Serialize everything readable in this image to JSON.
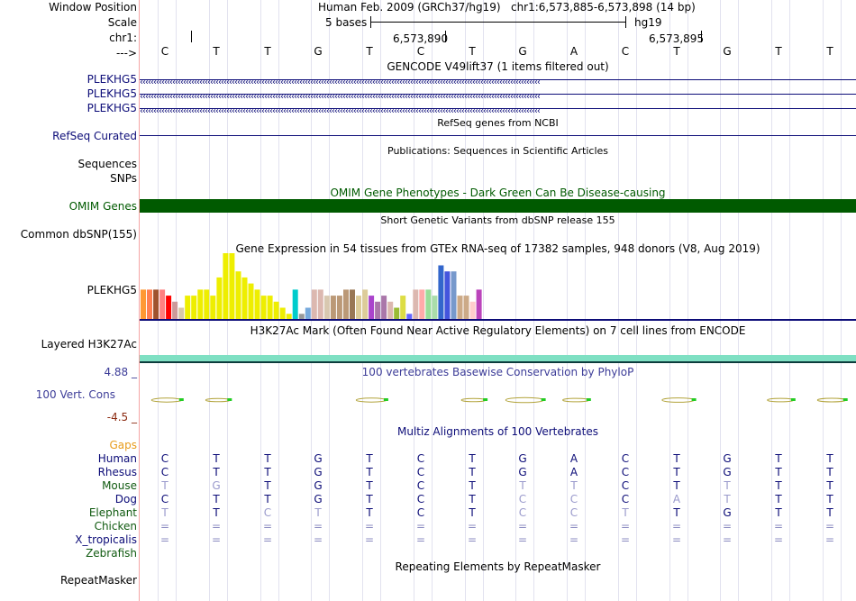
{
  "header": {
    "window_position_label": "Window Position",
    "scale_label": "Scale",
    "chr_label": "chr1:",
    "strand_label": "--->",
    "assembly": "Human Feb. 2009 (GRCh37/hg19)",
    "position": "chr1:6,573,885-6,573,898 (14 bp)",
    "scale_text": "5 bases",
    "scale_db": "hg19",
    "coord_1": "6,573,890",
    "coord_2": "6,573,895",
    "sequence": [
      "C",
      "T",
      "T",
      "G",
      "T",
      "C",
      "T",
      "G",
      "A",
      "C",
      "T",
      "G",
      "T",
      "T"
    ]
  },
  "tracks": {
    "gencode": {
      "title": "GENCODE V49lift37 (1 items filtered out)",
      "genes": [
        "PLEKHG5",
        "PLEKHG5",
        "PLEKHG5"
      ]
    },
    "refseq": {
      "title": "RefSeq genes from NCBI",
      "label": "RefSeq Curated"
    },
    "publications": {
      "title": "Publications: Sequences in Scientific Articles",
      "label": "Sequences"
    },
    "snps_label": "SNPs",
    "omim": {
      "title": "OMIM Gene Phenotypes - Dark Green Can Be Disease-causing",
      "label": "OMIM Genes",
      "color": "#005a00"
    },
    "dbsnp": {
      "title": "Short Genetic Variants from dbSNP release 155",
      "label": "Common dbSNP(155)"
    },
    "gtex": {
      "title": "Gene Expression in 54 tissues from GTEx RNA-seq of 17382 samples, 948 donors (V8, Aug 2019)",
      "label": "PLEKHG5"
    },
    "h3k27ac": {
      "title": "H3K27Ac Mark (Often Found Near Active Regulatory Elements) on 7 cell lines from ENCODE",
      "label": "Layered H3K27Ac",
      "color": "#7fe0c3"
    },
    "phylop": {
      "title": "100 vertebrates Basewise Conservation by PhyloP",
      "label": "100 Vert. Cons",
      "max": "4.88 _",
      "min": "-4.5 _"
    },
    "multiz": {
      "title": "Multiz Alignments of 100 Vertebrates",
      "gaps_label": "Gaps",
      "species": [
        {
          "name": "Human",
          "seq": [
            "C",
            "T",
            "T",
            "G",
            "T",
            "C",
            "T",
            "G",
            "A",
            "C",
            "T",
            "G",
            "T",
            "T"
          ]
        },
        {
          "name": "Rhesus",
          "seq": [
            "C",
            "T",
            "T",
            "G",
            "T",
            "C",
            "T",
            "G",
            "A",
            "C",
            "T",
            "G",
            "T",
            "T"
          ]
        },
        {
          "name": "Mouse",
          "seq": [
            "T",
            "G",
            "T",
            "G",
            "T",
            "C",
            "T",
            "T",
            "T",
            "C",
            "T",
            "T",
            "T",
            "T"
          ]
        },
        {
          "name": "Dog",
          "seq": [
            "C",
            "T",
            "T",
            "G",
            "T",
            "C",
            "T",
            "C",
            "C",
            "C",
            "A",
            "T",
            "T",
            "T"
          ]
        },
        {
          "name": "Elephant",
          "seq": [
            "T",
            "T",
            "C",
            "T",
            "T",
            "C",
            "T",
            "C",
            "C",
            "T",
            "T",
            "G",
            "T",
            "T"
          ]
        },
        {
          "name": "Chicken",
          "seq": [
            "=",
            "=",
            "=",
            "=",
            "=",
            "=",
            "=",
            "=",
            "=",
            "=",
            "=",
            "=",
            "=",
            "="
          ]
        },
        {
          "name": "X_tropicalis",
          "seq": [
            "=",
            "=",
            "=",
            "=",
            "=",
            "=",
            "=",
            "=",
            "=",
            "=",
            "=",
            "=",
            "=",
            "="
          ]
        },
        {
          "name": "Zebrafish",
          "seq": [
            "",
            "",
            "",
            "",
            "",
            "",
            "",
            "",
            "",
            "",
            "",
            "",
            "",
            ""
          ]
        }
      ]
    },
    "repeatmasker": {
      "title": "Repeating Elements by RepeatMasker",
      "label": "RepeatMasker"
    }
  },
  "chart_data": {
    "type": "bar",
    "title": "Gene Expression in 54 tissues from GTEx RNA-seq of 17382 samples, 948 donors (V8, Aug 2019)",
    "values": [
      5,
      5,
      5,
      5,
      4,
      3,
      2,
      4,
      4,
      5,
      5,
      4,
      7,
      11,
      11,
      8,
      7,
      6,
      5,
      4,
      4,
      3,
      2,
      1,
      5,
      1,
      2,
      5,
      5,
      4,
      4,
      4,
      5,
      5,
      4,
      5,
      4,
      3,
      4,
      3,
      2,
      4,
      1,
      5,
      5,
      5,
      4,
      9,
      8,
      8,
      4,
      4,
      3,
      5
    ],
    "colors": [
      "#ff9933",
      "#ff7f50",
      "#a0522d",
      "#ff8080",
      "#ff0000",
      "#cc9999",
      "#d8c8a8",
      "#eeee00",
      "#eeee00",
      "#eeee00",
      "#eeee00",
      "#eeee00",
      "#eeee00",
      "#eeee00",
      "#eeee00",
      "#eeee00",
      "#eeee00",
      "#eeee00",
      "#eeee00",
      "#eeee00",
      "#eeee00",
      "#eeee00",
      "#eeee00",
      "#eeee00",
      "#00cccc",
      "#999999",
      "#77aadd",
      "#dcb8b0",
      "#dcb8b0",
      "#d8c8b0",
      "#bb9977",
      "#bb9977",
      "#bb9977",
      "#997755",
      "#ddcc99",
      "#ddcc99",
      "#aa44cc",
      "#aa77aa",
      "#aa77aa",
      "#dcb8b0",
      "#99bb33",
      "#dddd44",
      "#6666ff",
      "#dcb8b0",
      "#ffaaaa",
      "#99dd99",
      "#aaddaa",
      "#3366cc",
      "#4455dd",
      "#7799cc",
      "#ccaa88",
      "#ccaa88",
      "#ffcccc",
      "#bb44bb"
    ],
    "ylim": [
      0,
      11
    ]
  },
  "phylop_data": [
    0.8,
    0.5,
    0,
    0,
    0.8,
    0,
    0.5,
    1.2,
    0.6,
    0,
    0.9,
    0,
    0.6,
    0.7
  ]
}
